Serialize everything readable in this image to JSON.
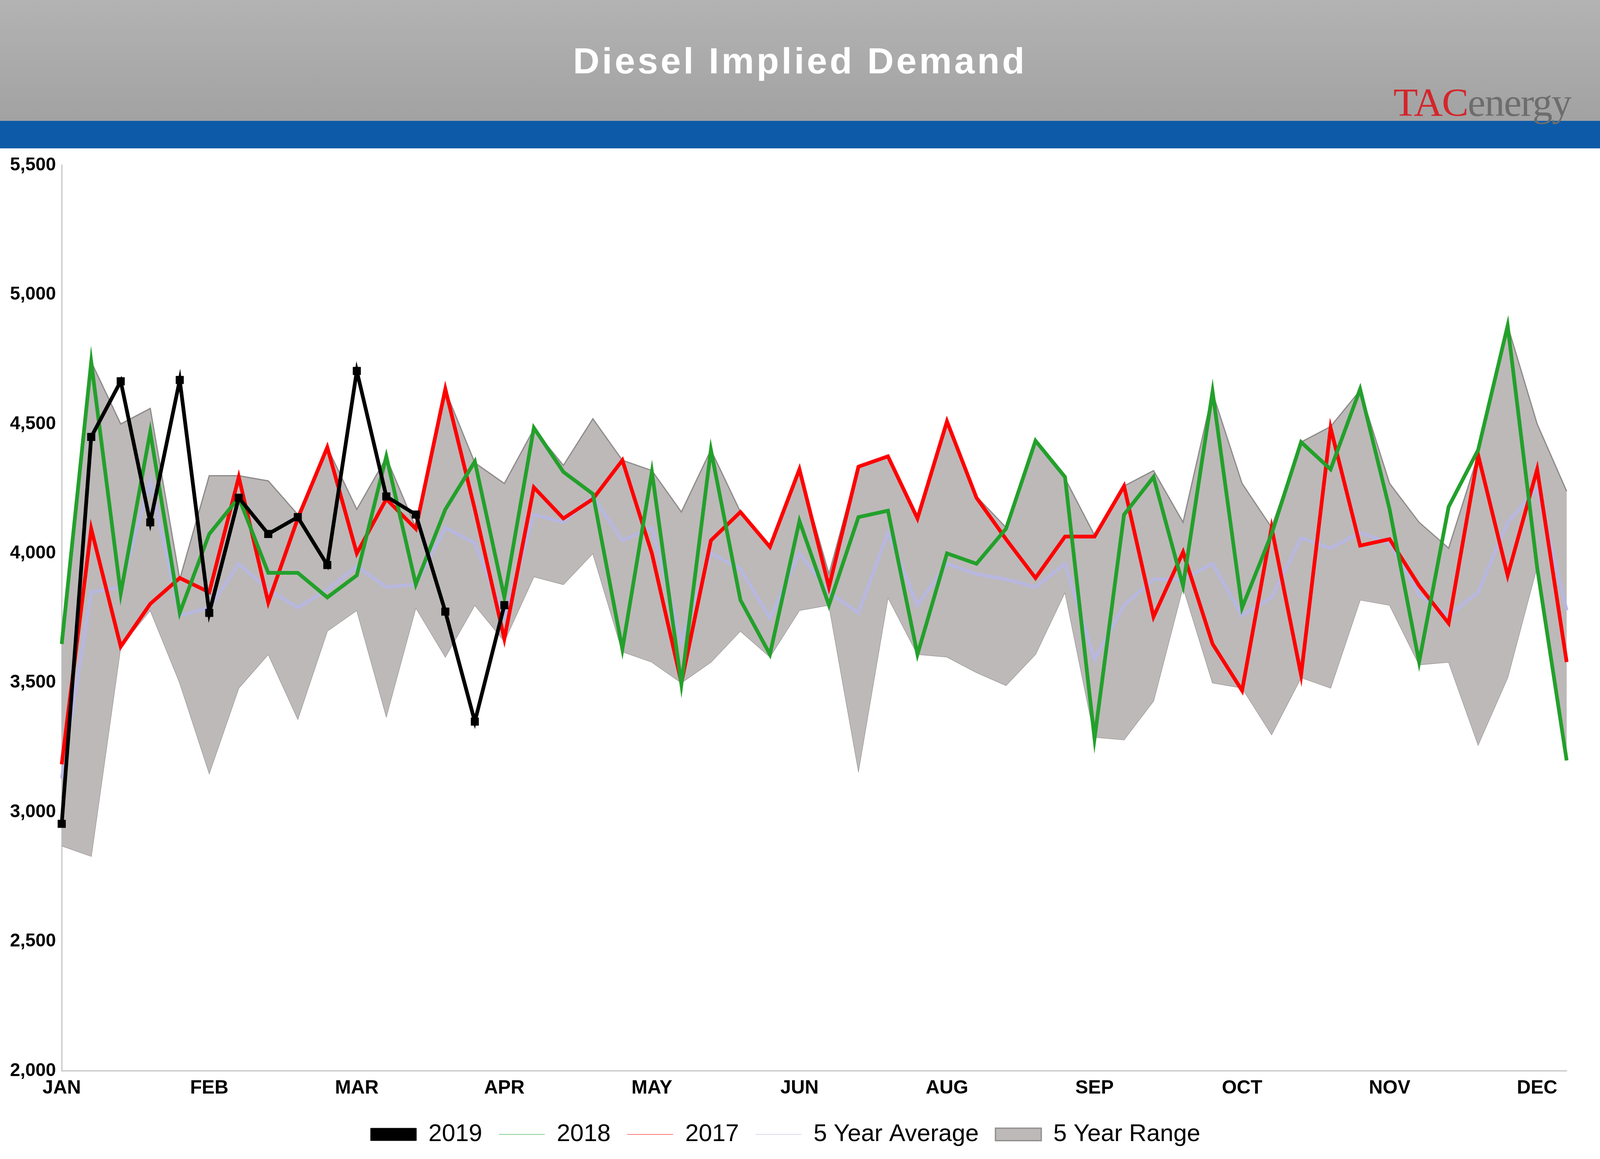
{
  "chart_data": {
    "type": "line",
    "title": "Diesel Implied Demand",
    "logo_parts": [
      "TAC",
      "energy"
    ],
    "categories": [
      "JAN",
      null,
      null,
      null,
      null,
      "FEB",
      null,
      null,
      null,
      null,
      "MAR",
      null,
      null,
      null,
      null,
      "APR",
      null,
      null,
      null,
      null,
      "MAY",
      null,
      null,
      null,
      null,
      "JUN",
      null,
      null,
      null,
      null,
      "AUG",
      null,
      null,
      null,
      null,
      "SEP",
      null,
      null,
      null,
      null,
      "OCT",
      null,
      null,
      null,
      null,
      "NOV",
      null,
      null,
      null,
      null,
      "DEC",
      null
    ],
    "ylim": [
      2000,
      5500
    ],
    "yticks": [
      {
        "value": 2000,
        "label": "2,000"
      },
      {
        "value": 2500,
        "label": "2,500"
      },
      {
        "value": 3000,
        "label": "3,000"
      },
      {
        "value": 3500,
        "label": "3,500"
      },
      {
        "value": 4000,
        "label": "4,000"
      },
      {
        "value": 4500,
        "label": "4,500"
      },
      {
        "value": 5000,
        "label": "5,000"
      },
      {
        "value": 5500,
        "label": "5,500"
      }
    ],
    "grid": false,
    "legend": "bottom",
    "series": [
      {
        "name": "5 Year Range",
        "type": "area",
        "color": "#bdb9b9",
        "low": [
          2870,
          2830,
          3640,
          3780,
          3500,
          3150,
          3480,
          3610,
          3360,
          3700,
          3780,
          3370,
          3790,
          3600,
          3800,
          3660,
          3910,
          3880,
          4000,
          3620,
          3580,
          3500,
          3580,
          3700,
          3600,
          3780,
          3800,
          3160,
          3830,
          3610,
          3600,
          3540,
          3490,
          3610,
          3850,
          3290,
          3280,
          3430,
          3870,
          3500,
          3480,
          3300,
          3520,
          3480,
          3820,
          3800,
          3570,
          3580,
          3260,
          3520,
          3950,
          3200
        ],
        "high": [
          3650,
          4740,
          4500,
          4560,
          3900,
          4300,
          4300,
          4280,
          4150,
          4410,
          4170,
          4370,
          4100,
          4630,
          4350,
          4270,
          4480,
          4340,
          4520,
          4360,
          4320,
          4160,
          4400,
          4160,
          4020,
          4320,
          3920,
          4340,
          4380,
          4140,
          4510,
          4220,
          4100,
          4430,
          4290,
          4070,
          4260,
          4320,
          4120,
          4620,
          4270,
          4100,
          4430,
          4490,
          4630,
          4270,
          4120,
          4020,
          4380,
          4880,
          4500,
          4240
        ]
      },
      {
        "name": "5 Year Average",
        "color": "#b7b7e0",
        "values": [
          3130,
          3850,
          3870,
          4280,
          3760,
          3790,
          3960,
          3860,
          3790,
          3860,
          3950,
          3870,
          3880,
          4100,
          4040,
          3750,
          4150,
          4120,
          4220,
          4050,
          4100,
          3660,
          4000,
          3940,
          3750,
          4000,
          3850,
          3770,
          4080,
          3800,
          3960,
          3920,
          3900,
          3870,
          3960,
          3590,
          3800,
          3900,
          3900,
          3960,
          3760,
          3830,
          4060,
          4020,
          4080,
          4040,
          3840,
          3760,
          3850,
          4120,
          4250,
          3780
        ]
      },
      {
        "name": "2017",
        "color": "#ff0000",
        "values": [
          3185,
          4095,
          3640,
          3805,
          3905,
          3850,
          4295,
          3810,
          4135,
          4410,
          4000,
          4210,
          4095,
          4635,
          4170,
          3670,
          4255,
          4135,
          4210,
          4360,
          4000,
          3500,
          4050,
          4160,
          4025,
          4325,
          3870,
          4335,
          4375,
          4135,
          4510,
          4215,
          4055,
          3905,
          4065,
          4065,
          4260,
          3755,
          4005,
          3650,
          3470,
          4100,
          3530,
          4485,
          4030,
          4055,
          3875,
          3730,
          4380,
          3915,
          4325,
          3580
        ]
      },
      {
        "name": "2018",
        "color": "#23a02b",
        "values": [
          3650,
          4740,
          3845,
          4470,
          3770,
          4075,
          4215,
          3925,
          3925,
          3830,
          3915,
          4375,
          3880,
          4170,
          4355,
          3830,
          4485,
          4315,
          4230,
          3630,
          4315,
          3495,
          4400,
          3820,
          3610,
          4125,
          3800,
          4140,
          4165,
          3610,
          4000,
          3960,
          4095,
          4435,
          4295,
          3285,
          4150,
          4295,
          3875,
          4625,
          3790,
          4075,
          4430,
          4325,
          4635,
          4170,
          3580,
          4180,
          4400,
          4880,
          3945,
          3200
        ]
      },
      {
        "name": "2019",
        "color": "#000000",
        "marker": "square",
        "values": [
          2955,
          4450,
          4665,
          4120,
          4670,
          3770,
          4215,
          4075,
          4140,
          3955,
          4705,
          4220,
          4150,
          3775,
          3350,
          3800,
          null,
          null,
          null,
          null,
          null,
          null,
          null,
          null,
          null,
          null,
          null,
          null,
          null,
          null,
          null,
          null,
          null,
          null,
          null,
          null,
          null,
          null,
          null,
          null,
          null,
          null,
          null,
          null,
          null,
          null,
          null,
          null,
          null,
          null,
          null,
          null
        ]
      }
    ]
  }
}
